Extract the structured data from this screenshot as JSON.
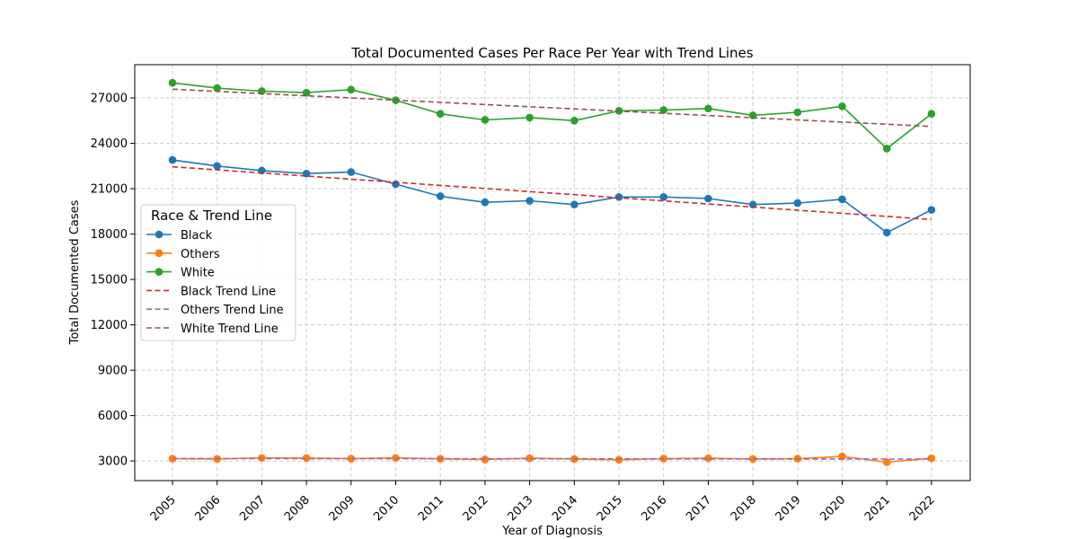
{
  "chart_data": {
    "type": "line",
    "title": "Total Documented Cases Per Race Per Year with Trend Lines",
    "xlabel": "Year of Diagnosis",
    "ylabel": "Total Documented Cases",
    "categories": [
      "2005",
      "2006",
      "2007",
      "2008",
      "2009",
      "2010",
      "2011",
      "2012",
      "2013",
      "2014",
      "2015",
      "2016",
      "2017",
      "2018",
      "2019",
      "2020",
      "2021",
      "2022"
    ],
    "yticks": [
      3000,
      6000,
      9000,
      12000,
      15000,
      18000,
      21000,
      24000,
      27000
    ],
    "ylim": [
      1700,
      29200
    ],
    "grid": true,
    "legend": {
      "title": "Race & Trend Line",
      "placement": "center-left",
      "entries": [
        "Black",
        "Others",
        "White",
        "Black Trend Line",
        "Others Trend Line",
        "White Trend Line"
      ]
    },
    "series": [
      {
        "name": "Black",
        "style": "line-marker",
        "color": "#1f77b4",
        "values": [
          22900,
          22500,
          22200,
          22000,
          22100,
          21300,
          20500,
          20100,
          20200,
          19950,
          20450,
          20450,
          20350,
          19950,
          20050,
          20300,
          18100,
          19600
        ]
      },
      {
        "name": "Others",
        "style": "line-marker",
        "color": "#ff7f0e",
        "values": [
          3150,
          3130,
          3200,
          3190,
          3150,
          3200,
          3140,
          3100,
          3180,
          3130,
          3080,
          3150,
          3180,
          3130,
          3150,
          3300,
          2920,
          3180
        ]
      },
      {
        "name": "White",
        "style": "line-marker",
        "color": "#2ca02c",
        "values": [
          28000,
          27650,
          27450,
          27350,
          27550,
          26850,
          25950,
          25550,
          25700,
          25500,
          26150,
          26200,
          26300,
          25850,
          26050,
          26450,
          23650,
          25950
        ]
      },
      {
        "name": "Black Trend Line",
        "style": "dashed",
        "color": "#d62728",
        "values": [
          22450,
          22245,
          22040,
          21835,
          21630,
          21425,
          21220,
          21015,
          20810,
          20605,
          20400,
          20195,
          19990,
          19785,
          19580,
          19375,
          19170,
          18965
        ]
      },
      {
        "name": "Others Trend Line",
        "style": "dashed",
        "color": "#9467bd",
        "values": [
          3160,
          3158,
          3156,
          3154,
          3152,
          3150,
          3148,
          3146,
          3144,
          3142,
          3140,
          3138,
          3136,
          3134,
          3132,
          3130,
          3128,
          3126
        ]
      },
      {
        "name": "White Trend Line",
        "style": "dashed",
        "color": "#8c564b",
        "values": [
          27580,
          27435,
          27290,
          27145,
          27000,
          26855,
          26710,
          26565,
          26420,
          26275,
          26130,
          25985,
          25840,
          25695,
          25550,
          25405,
          25260,
          25115
        ]
      }
    ]
  }
}
